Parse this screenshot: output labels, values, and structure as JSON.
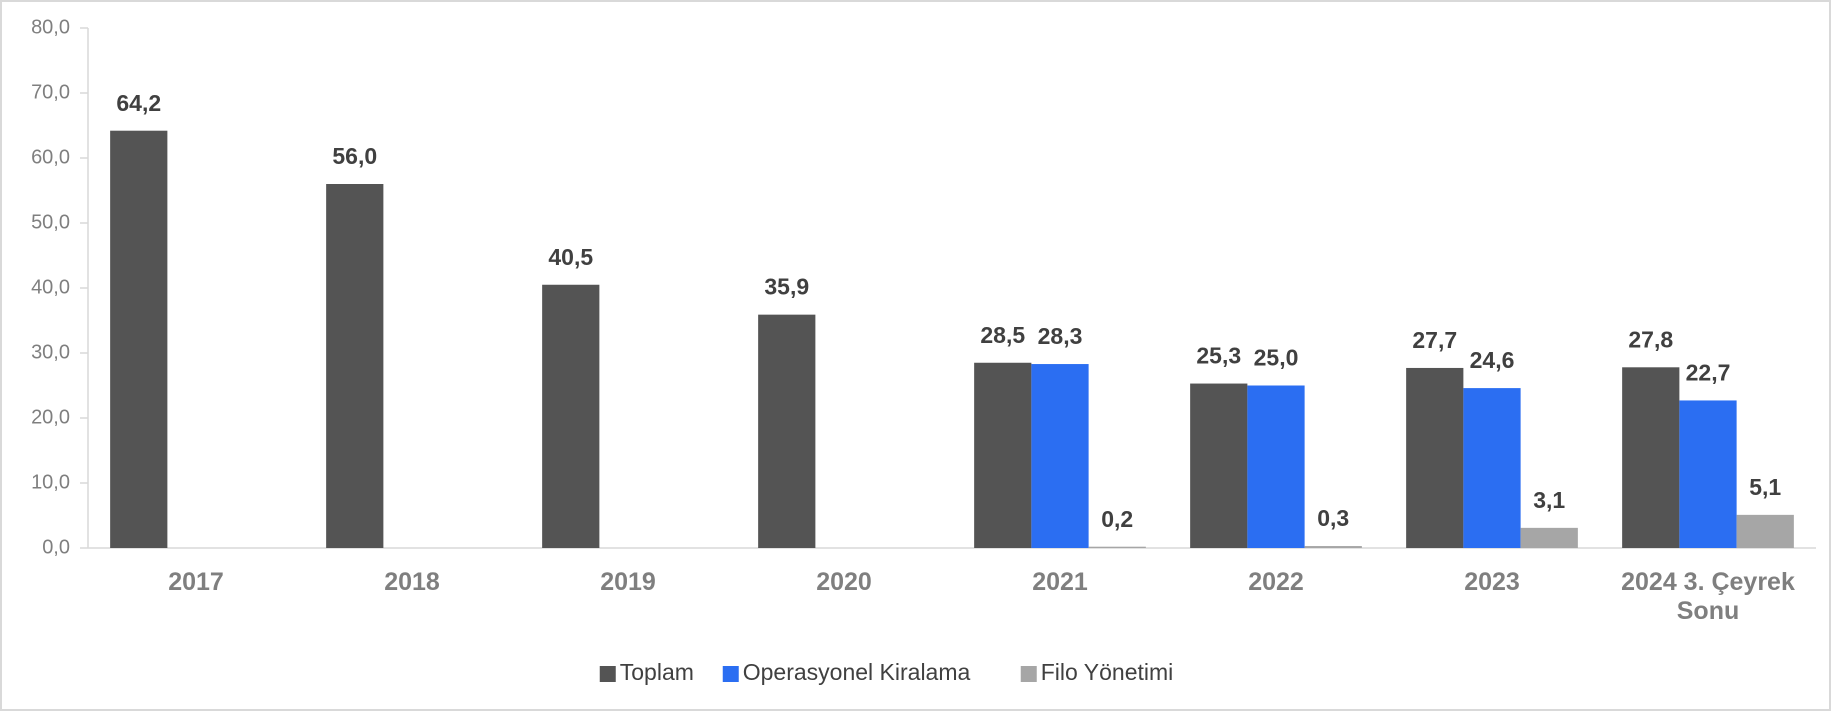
{
  "chart_data": {
    "type": "bar",
    "categories": [
      "2017",
      "2018",
      "2019",
      "2020",
      "2021",
      "2022",
      "2023",
      "2024 3. Çeyrek Sonu"
    ],
    "series": [
      {
        "name": "Toplam",
        "color": "#545454",
        "values": [
          64.2,
          56.0,
          40.5,
          35.9,
          28.5,
          25.3,
          27.7,
          27.8
        ],
        "value_labels": [
          "64,2",
          "56,0",
          "40,5",
          "35,9",
          "28,5",
          "25,3",
          "27,7",
          "27,8"
        ]
      },
      {
        "name": "Operasyonel Kiralama",
        "color": "#2b6ef2",
        "values": [
          null,
          null,
          null,
          null,
          28.3,
          25.0,
          24.6,
          22.7
        ],
        "value_labels": [
          null,
          null,
          null,
          null,
          "28,3",
          "25,0",
          "24,6",
          "22,7"
        ]
      },
      {
        "name": "Filo Yönetimi",
        "color": "#a6a6a6",
        "values": [
          null,
          null,
          null,
          null,
          0.2,
          0.3,
          3.1,
          5.1
        ],
        "value_labels": [
          null,
          null,
          null,
          null,
          "0,2",
          "0,3",
          "3,1",
          "5,1"
        ]
      }
    ],
    "ylim": [
      0,
      80
    ],
    "yticks": [
      {
        "value": 0,
        "label": "0,0"
      },
      {
        "value": 10,
        "label": "10,0"
      },
      {
        "value": 20,
        "label": "20,0"
      },
      {
        "value": 30,
        "label": "30,0"
      },
      {
        "value": 40,
        "label": "40,0"
      },
      {
        "value": 50,
        "label": "50,0"
      },
      {
        "value": 60,
        "label": "60,0"
      },
      {
        "value": 70,
        "label": "70,0"
      },
      {
        "value": 80,
        "label": "80,0"
      }
    ],
    "legend": "bottom"
  }
}
